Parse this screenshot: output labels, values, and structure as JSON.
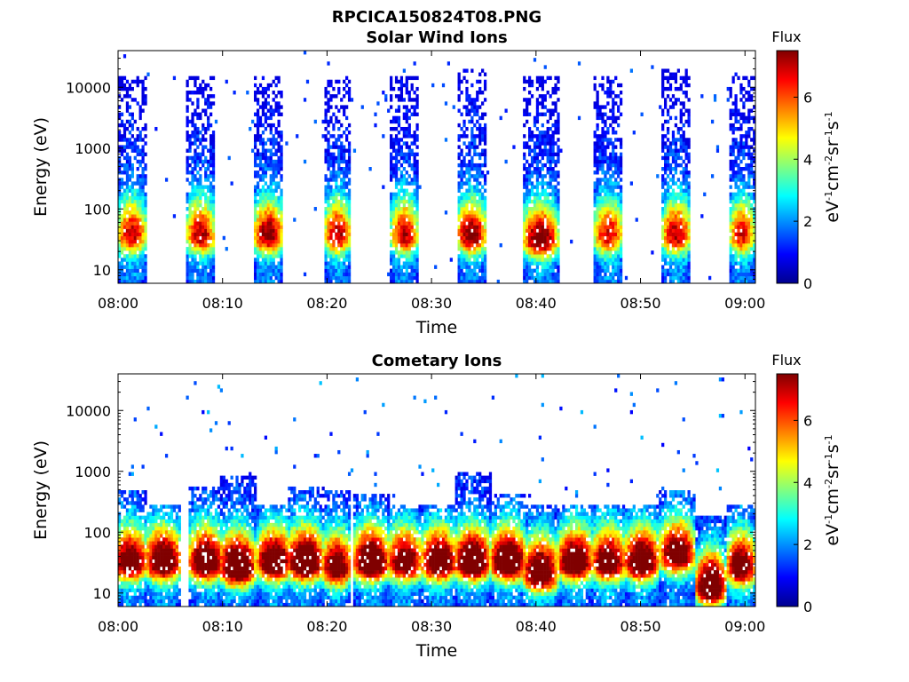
{
  "figure_title": "RPCICA150824T08.PNG",
  "chart_data": [
    {
      "type": "heatmap",
      "title": "Solar Wind Ions",
      "xlabel": "Time",
      "ylabel": "Energy (eV)",
      "x_ticks": [
        "08:00",
        "08:10",
        "08:20",
        "08:30",
        "08:40",
        "08:50",
        "09:00"
      ],
      "x_range": [
        "08:00",
        "09:01"
      ],
      "y_scale": "log",
      "y_ticks": [
        10,
        100,
        1000,
        10000
      ],
      "y_tick_labels": [
        "10",
        "100",
        "1000",
        "10000"
      ],
      "y_range": [
        6,
        40000
      ],
      "colorbar": {
        "title": "Flux",
        "label": "eV-1cm-2sr-1s-1",
        "range": [
          0,
          7.5
        ],
        "ticks": [
          0,
          2,
          4,
          6
        ],
        "colormap": "jet"
      },
      "bursts": [
        {
          "center_min": 1.2,
          "width_min": 2.5,
          "peak_energy_ev": 35,
          "peak_flux": 5.0,
          "max_energy_ev": 15000
        },
        {
          "center_min": 7.8,
          "width_min": 2.5,
          "peak_energy_ev": 35,
          "peak_flux": 5.0,
          "max_energy_ev": 15000
        },
        {
          "center_min": 14.3,
          "width_min": 2.5,
          "peak_energy_ev": 35,
          "peak_flux": 5.6,
          "max_energy_ev": 15000
        },
        {
          "center_min": 20.9,
          "width_min": 2.3,
          "peak_energy_ev": 35,
          "peak_flux": 5.1,
          "max_energy_ev": 15000
        },
        {
          "center_min": 27.3,
          "width_min": 2.3,
          "peak_energy_ev": 35,
          "peak_flux": 5.1,
          "max_energy_ev": 15000
        },
        {
          "center_min": 33.7,
          "width_min": 2.5,
          "peak_energy_ev": 35,
          "peak_flux": 5.7,
          "max_energy_ev": 20000
        },
        {
          "center_min": 40.3,
          "width_min": 3.0,
          "peak_energy_ev": 30,
          "peak_flux": 5.9,
          "max_energy_ev": 15000
        },
        {
          "center_min": 46.8,
          "width_min": 2.5,
          "peak_energy_ev": 35,
          "peak_flux": 4.8,
          "max_energy_ev": 15000
        },
        {
          "center_min": 53.3,
          "width_min": 2.5,
          "peak_energy_ev": 35,
          "peak_flux": 5.1,
          "max_energy_ev": 20000
        },
        {
          "center_min": 59.6,
          "width_min": 2.2,
          "peak_energy_ev": 35,
          "peak_flux": 4.7,
          "max_energy_ev": 15000
        }
      ]
    },
    {
      "type": "heatmap",
      "title": "Cometary Ions",
      "xlabel": "Time",
      "ylabel": "Energy (eV)",
      "x_ticks": [
        "08:00",
        "08:10",
        "08:20",
        "08:30",
        "08:40",
        "08:50",
        "09:00"
      ],
      "x_range": [
        "08:00",
        "09:01"
      ],
      "y_scale": "log",
      "y_ticks": [
        10,
        100,
        1000,
        10000
      ],
      "y_tick_labels": [
        "10",
        "100",
        "1000",
        "10000"
      ],
      "y_range": [
        6,
        40000
      ],
      "colorbar": {
        "title": "Flux",
        "label": "eV-1cm-2sr-1s-1",
        "range": [
          0,
          7.5
        ],
        "ticks": [
          0,
          2,
          4,
          6
        ],
        "colormap": "jet"
      },
      "bursts": [
        {
          "center_min": 1.0,
          "width_min": 3.0,
          "peak_energy_ev": 30,
          "peak_flux": 6.5,
          "max_energy_ev": 500
        },
        {
          "center_min": 4.2,
          "width_min": 3.0,
          "peak_energy_ev": 30,
          "peak_flux": 7.0,
          "max_energy_ev": 300
        },
        {
          "center_min": 8.3,
          "width_min": 3.0,
          "peak_energy_ev": 30,
          "peak_flux": 7.0,
          "max_energy_ev": 600
        },
        {
          "center_min": 11.3,
          "width_min": 3.0,
          "peak_energy_ev": 25,
          "peak_flux": 7.5,
          "max_energy_ev": 800
        },
        {
          "center_min": 14.8,
          "width_min": 3.0,
          "peak_energy_ev": 30,
          "peak_flux": 7.0,
          "max_energy_ev": 300
        },
        {
          "center_min": 17.8,
          "width_min": 3.0,
          "peak_energy_ev": 30,
          "peak_flux": 7.5,
          "max_energy_ev": 600
        },
        {
          "center_min": 20.8,
          "width_min": 2.5,
          "peak_energy_ev": 25,
          "peak_flux": 6.5,
          "max_energy_ev": 500
        },
        {
          "center_min": 24.1,
          "width_min": 3.0,
          "peak_energy_ev": 30,
          "peak_flux": 7.5,
          "max_energy_ev": 400
        },
        {
          "center_min": 27.3,
          "width_min": 3.0,
          "peak_energy_ev": 30,
          "peak_flux": 6.5,
          "max_energy_ev": 300
        },
        {
          "center_min": 30.6,
          "width_min": 3.0,
          "peak_energy_ev": 30,
          "peak_flux": 7.0,
          "max_energy_ev": 300
        },
        {
          "center_min": 33.8,
          "width_min": 3.0,
          "peak_energy_ev": 30,
          "peak_flux": 7.5,
          "max_energy_ev": 1000
        },
        {
          "center_min": 37.2,
          "width_min": 3.0,
          "peak_energy_ev": 30,
          "peak_flux": 7.5,
          "max_energy_ev": 400
        },
        {
          "center_min": 40.3,
          "width_min": 3.0,
          "peak_energy_ev": 20,
          "peak_flux": 7.0,
          "max_energy_ev": 300
        },
        {
          "center_min": 43.6,
          "width_min": 3.0,
          "peak_energy_ev": 30,
          "peak_flux": 7.0,
          "max_energy_ev": 300
        },
        {
          "center_min": 46.8,
          "width_min": 3.0,
          "peak_energy_ev": 30,
          "peak_flux": 6.5,
          "max_energy_ev": 300
        },
        {
          "center_min": 50.0,
          "width_min": 3.0,
          "peak_energy_ev": 30,
          "peak_flux": 7.0,
          "max_energy_ev": 300
        },
        {
          "center_min": 53.4,
          "width_min": 3.0,
          "peak_energy_ev": 40,
          "peak_flux": 6.5,
          "max_energy_ev": 500
        },
        {
          "center_min": 56.6,
          "width_min": 2.5,
          "peak_energy_ev": 12,
          "peak_flux": 7.5,
          "max_energy_ev": 200
        },
        {
          "center_min": 59.5,
          "width_min": 2.5,
          "peak_energy_ev": 25,
          "peak_flux": 6.5,
          "max_energy_ev": 300
        }
      ]
    }
  ]
}
